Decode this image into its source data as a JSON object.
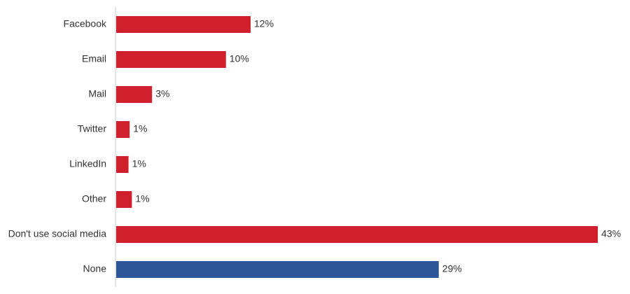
{
  "chart_data": {
    "type": "hbar",
    "categories": [
      "Facebook",
      "Email",
      "Mail",
      "Twitter",
      "LinkedIn",
      "Other",
      "Don't use social media",
      "None"
    ],
    "values": [
      12,
      9.8,
      3.2,
      1.2,
      1.1,
      1.4,
      43,
      28.8
    ],
    "value_labels": [
      "12%",
      "10%",
      "3%",
      "1%",
      "1%",
      "1%",
      "43%",
      "29%"
    ],
    "colors": [
      "#d0202e",
      "#d0202e",
      "#d0202e",
      "#d0202e",
      "#d0202e",
      "#d0202e",
      "#d0202e",
      "#2e5597"
    ]
  }
}
